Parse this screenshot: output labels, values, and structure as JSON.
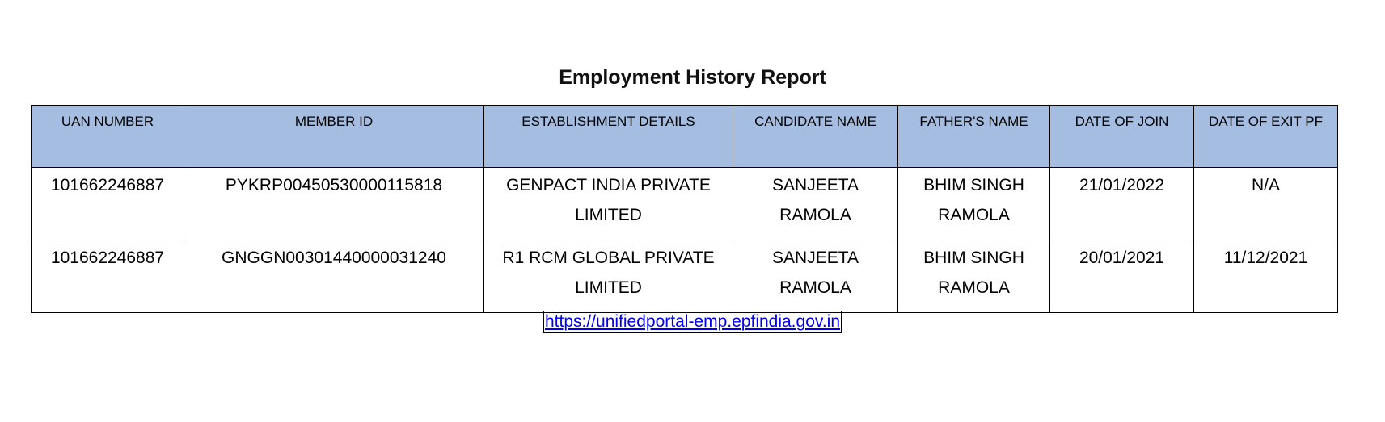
{
  "title": "Employment History Report",
  "table": {
    "headers": [
      "UAN NUMBER",
      "MEMBER ID",
      "ESTABLISHMENT DETAILS",
      "CANDIDATE NAME",
      "FATHER'S NAME",
      "DATE OF JOIN",
      "DATE OF EXIT PF"
    ],
    "rows": [
      [
        "101662246887",
        "PYKRP00450530000115818",
        "GENPACT INDIA PRIVATE LIMITED",
        "SANJEETA RAMOLA",
        "BHIM SINGH RAMOLA",
        "21/01/2022",
        "N/A"
      ],
      [
        "101662246887",
        "GNGGN00301440000031240",
        "R1 RCM GLOBAL PRIVATE LIMITED",
        "SANJEETA RAMOLA",
        "BHIM SINGH RAMOLA",
        "20/01/2021",
        "11/12/2021"
      ]
    ]
  },
  "link": "https://unifiedportal-emp.epfindia.gov.in",
  "colors": {
    "header_bg": "#a4bde0",
    "link": "#0000ee"
  }
}
